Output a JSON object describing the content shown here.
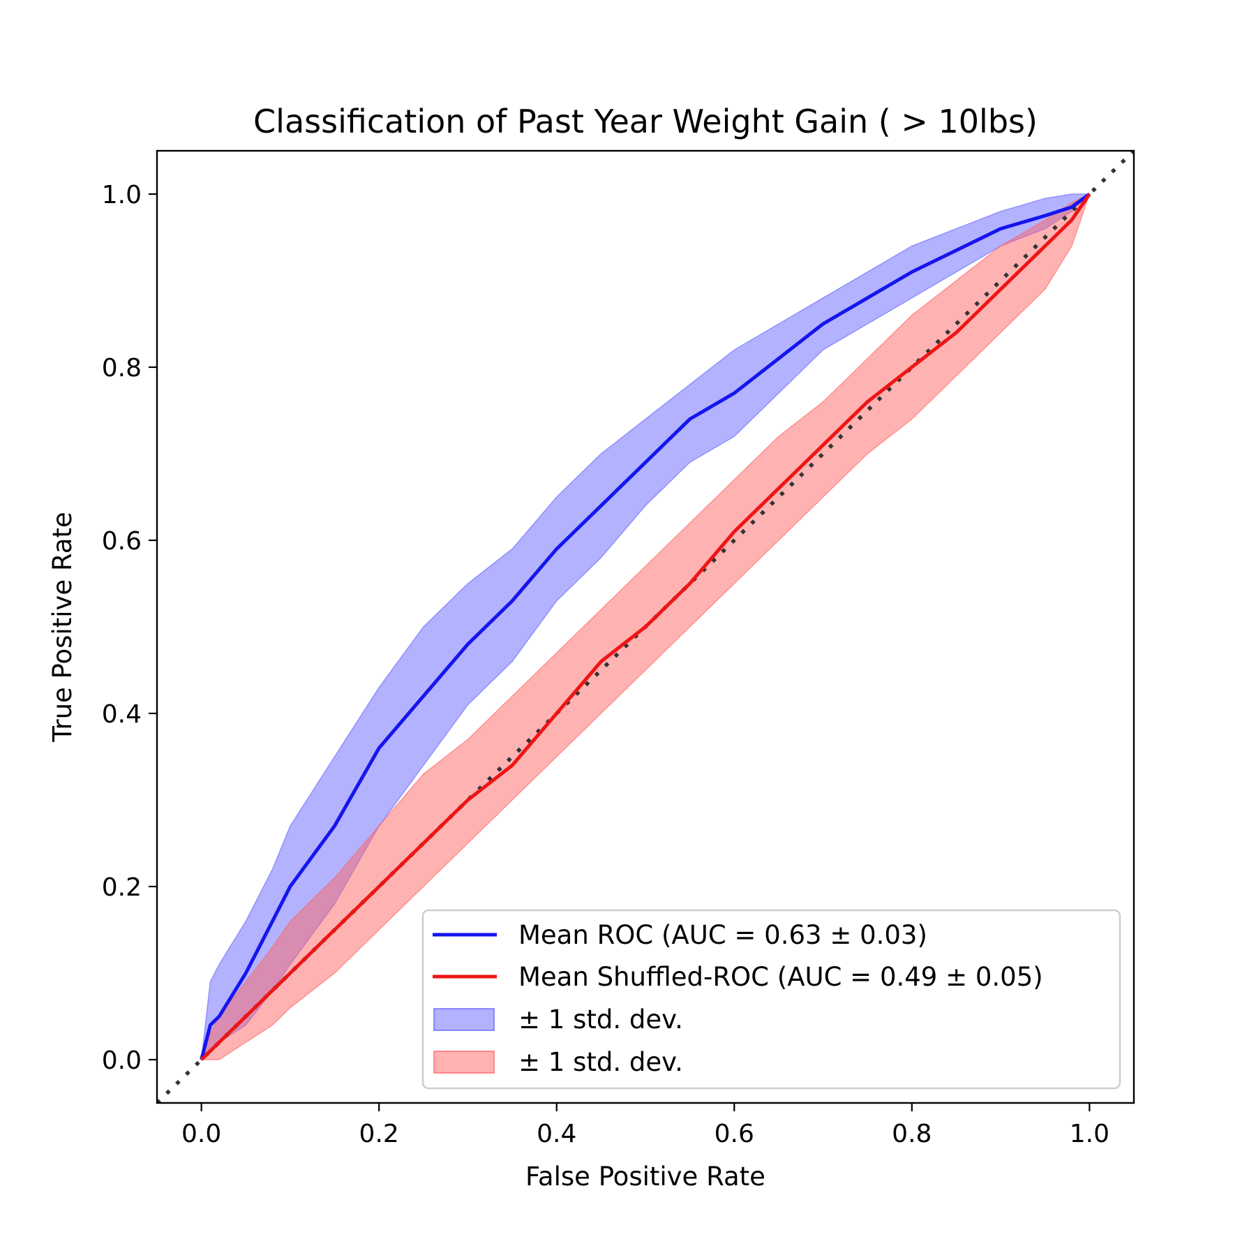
{
  "chart_data": {
    "type": "line",
    "title": "Classification of Past Year Weight Gain ( > 10lbs)",
    "xlabel": "False Positive Rate",
    "ylabel": "True Positive Rate",
    "xlim": [
      -0.05,
      1.05
    ],
    "ylim": [
      -0.05,
      1.05
    ],
    "xticks": [
      "0.0",
      "0.2",
      "0.4",
      "0.6",
      "0.8",
      "1.0"
    ],
    "yticks": [
      "0.0",
      "0.2",
      "0.4",
      "0.6",
      "0.8",
      "1.0"
    ],
    "grid": false,
    "legend_position": "lower-right",
    "x": [
      0.0,
      0.01,
      0.02,
      0.05,
      0.08,
      0.1,
      0.15,
      0.2,
      0.25,
      0.3,
      0.35,
      0.4,
      0.45,
      0.5,
      0.55,
      0.6,
      0.65,
      0.7,
      0.75,
      0.8,
      0.85,
      0.9,
      0.95,
      0.98,
      1.0
    ],
    "series": [
      {
        "name": "Mean ROC (AUC = 0.63 ± 0.03)",
        "color": "#1515ee",
        "values": [
          0.0,
          0.04,
          0.05,
          0.1,
          0.16,
          0.2,
          0.27,
          0.36,
          0.42,
          0.48,
          0.53,
          0.59,
          0.64,
          0.69,
          0.74,
          0.77,
          0.81,
          0.85,
          0.88,
          0.91,
          0.935,
          0.96,
          0.975,
          0.985,
          1.0
        ],
        "band_lower": [
          0.0,
          0.01,
          0.02,
          0.04,
          0.08,
          0.11,
          0.18,
          0.27,
          0.34,
          0.41,
          0.46,
          0.53,
          0.58,
          0.64,
          0.69,
          0.72,
          0.77,
          0.82,
          0.85,
          0.88,
          0.91,
          0.94,
          0.96,
          0.98,
          1.0
        ],
        "band_upper": [
          0.0,
          0.09,
          0.11,
          0.16,
          0.22,
          0.27,
          0.35,
          0.43,
          0.5,
          0.55,
          0.59,
          0.65,
          0.7,
          0.74,
          0.78,
          0.82,
          0.85,
          0.88,
          0.91,
          0.94,
          0.96,
          0.98,
          0.995,
          1.0,
          1.0
        ]
      },
      {
        "name": "Mean Shuffled-ROC (AUC = 0.49 ± 0.05)",
        "color": "#ee1515",
        "values": [
          0.0,
          0.01,
          0.02,
          0.05,
          0.08,
          0.1,
          0.15,
          0.2,
          0.25,
          0.3,
          0.34,
          0.4,
          0.46,
          0.5,
          0.55,
          0.61,
          0.66,
          0.71,
          0.76,
          0.8,
          0.84,
          0.89,
          0.94,
          0.97,
          1.0
        ],
        "band_lower": [
          0.0,
          0.0,
          0.0,
          0.02,
          0.04,
          0.06,
          0.1,
          0.15,
          0.2,
          0.25,
          0.3,
          0.35,
          0.4,
          0.45,
          0.5,
          0.55,
          0.6,
          0.65,
          0.7,
          0.74,
          0.79,
          0.84,
          0.89,
          0.94,
          1.0
        ],
        "band_upper": [
          0.0,
          0.03,
          0.05,
          0.09,
          0.13,
          0.16,
          0.21,
          0.27,
          0.33,
          0.37,
          0.42,
          0.47,
          0.52,
          0.57,
          0.62,
          0.67,
          0.72,
          0.76,
          0.81,
          0.86,
          0.9,
          0.94,
          0.97,
          0.99,
          1.0
        ]
      }
    ],
    "bands": [
      {
        "label": "± 1 std. dev.",
        "color": "#6666ff",
        "of_series": 0
      },
      {
        "label": "± 1 std. dev.",
        "color": "#ff6666",
        "of_series": 1
      }
    ],
    "reference_line": {
      "from": [
        -0.05,
        -0.05
      ],
      "to": [
        1.05,
        1.05
      ],
      "style": "dotted",
      "color": "#333333"
    }
  }
}
